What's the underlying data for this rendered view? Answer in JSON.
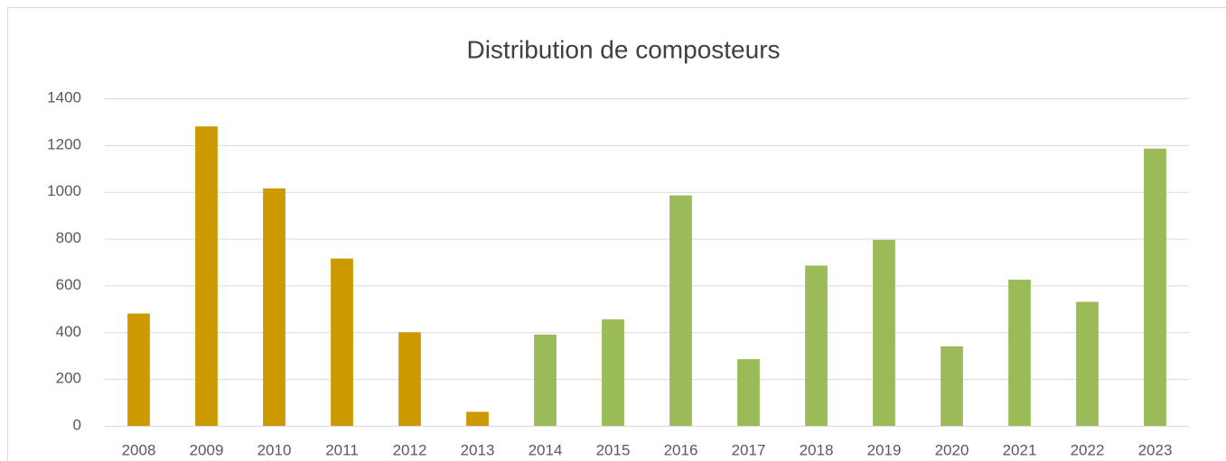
{
  "chart_data": {
    "type": "bar",
    "title": "Distribution de composteurs",
    "categories": [
      "2008",
      "2009",
      "2010",
      "2011",
      "2012",
      "2013",
      "2014",
      "2015",
      "2016",
      "2017",
      "2018",
      "2019",
      "2020",
      "2021",
      "2022",
      "2023"
    ],
    "values": [
      480,
      1280,
      1015,
      715,
      400,
      60,
      390,
      455,
      985,
      285,
      685,
      795,
      340,
      625,
      530,
      1185
    ],
    "colors": [
      "#cc9a00",
      "#cc9a00",
      "#cc9a00",
      "#cc9a00",
      "#cc9a00",
      "#cc9a00",
      "#9bbb59",
      "#9bbb59",
      "#9bbb59",
      "#9bbb59",
      "#9bbb59",
      "#9bbb59",
      "#9bbb59",
      "#9bbb59",
      "#9bbb59",
      "#9bbb59"
    ],
    "ylim": [
      0,
      1400
    ],
    "yticks": [
      0,
      200,
      400,
      600,
      800,
      1000,
      1200,
      1400
    ],
    "grid": true
  }
}
